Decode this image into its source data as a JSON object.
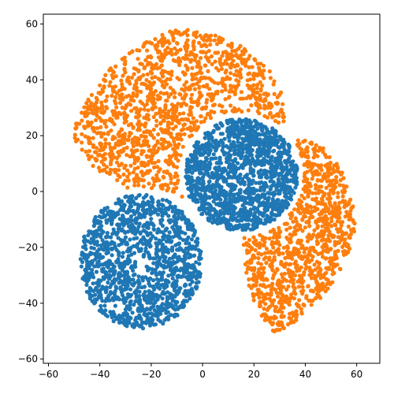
{
  "chart_data": {
    "type": "scatter",
    "title": "",
    "xlabel": "",
    "ylabel": "",
    "xlim": [
      -62,
      69
    ],
    "ylim": [
      -61.5,
      63.5
    ],
    "x_ticks": [
      -60,
      -40,
      -20,
      0,
      20,
      40,
      60
    ],
    "y_ticks": [
      -60,
      -40,
      -20,
      0,
      20,
      40,
      60
    ],
    "x_tick_labels": [
      "−60",
      "−40",
      "−20",
      "0",
      "20",
      "40",
      "60"
    ],
    "y_tick_labels": [
      "−60",
      "−40",
      "−20",
      "0",
      "20",
      "40",
      "60"
    ],
    "grid": false,
    "legend": "none",
    "series": [
      {
        "color": "#1f77b4",
        "clusters": [
          {
            "cx": 15,
            "cy": 6,
            "rx": 22,
            "ry": 20,
            "count": 1400,
            "notes": "upper-right blue blob spanning x≈-13..39, y≈-17..27"
          },
          {
            "cx": -24,
            "cy": -25,
            "rx": 24,
            "ry": 24,
            "count": 1300,
            "notes": "lower-left blue blob spanning x≈-47..0, y≈-51..1"
          }
        ]
      },
      {
        "color": "#ff7f0e",
        "clusters": [
          {
            "cx": -10,
            "cy": 28,
            "rx": 42,
            "ry": 30,
            "count": 1300,
            "notes": "top orange arc, x≈-52..40, y≈2..59"
          },
          {
            "cx": 38,
            "cy": -18,
            "rx": 22,
            "ry": 37,
            "count": 1000,
            "notes": "right-lower orange region, x≈2..62, y≈-55..22"
          }
        ]
      }
    ]
  }
}
